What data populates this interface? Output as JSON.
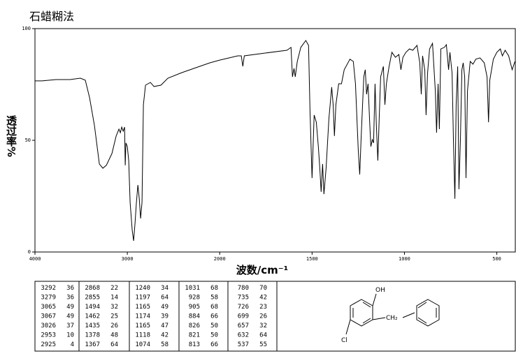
{
  "chart_data": {
    "type": "line",
    "title": "石蜡糊法",
    "xlabel": "波数/cm⁻¹",
    "ylabel": "透过率%",
    "xlim": [
      4000,
      400
    ],
    "x_scale_break": 2000,
    "xticks": [
      4000,
      3000,
      2000,
      1500,
      1000,
      500
    ],
    "ylim": [
      0,
      100
    ],
    "yticks": [
      0,
      50,
      100
    ],
    "color": "#000000",
    "x": [
      4000,
      3924,
      3773,
      3621,
      3508,
      3455,
      3409,
      3356,
      3303,
      3265,
      3227,
      3167,
      3121,
      3091,
      3076,
      3061,
      3045,
      3030,
      3023,
      3015,
      3000,
      2985,
      2970,
      2947,
      2932,
      2917,
      2902,
      2886,
      2871,
      2856,
      2841,
      2826,
      2803,
      2750,
      2712,
      2636,
      2561,
      2409,
      2258,
      2106,
      2000,
      1902,
      1883,
      1875,
      1867,
      1750,
      1636,
      1614,
      1606,
      1598,
      1591,
      1580,
      1561,
      1534,
      1519,
      1511,
      1500,
      1489,
      1477,
      1466,
      1458,
      1451,
      1443,
      1436,
      1424,
      1409,
      1394,
      1386,
      1379,
      1371,
      1356,
      1341,
      1326,
      1295,
      1277,
      1265,
      1250,
      1242,
      1235,
      1220,
      1212,
      1205,
      1197,
      1189,
      1182,
      1174,
      1167,
      1159,
      1152,
      1144,
      1136,
      1129,
      1114,
      1106,
      1098,
      1083,
      1068,
      1049,
      1030,
      1019,
      1008,
      992,
      973,
      955,
      932,
      917,
      909,
      902,
      890,
      883,
      875,
      864,
      848,
      833,
      826,
      818,
      811,
      803,
      784,
      773,
      761,
      754,
      742,
      735,
      727,
      720,
      712,
      705,
      697,
      689,
      682,
      674,
      667,
      659,
      644,
      629,
      614,
      591,
      568,
      553,
      545,
      538,
      519,
      500,
      481,
      470,
      455,
      436,
      417,
      402
    ],
    "values": [
      76.6,
      76.6,
      77.2,
      77.2,
      77.8,
      76.9,
      69.1,
      56.6,
      39.4,
      37.5,
      38.8,
      44.1,
      51.9,
      55,
      53.4,
      55.9,
      54.1,
      55.9,
      38.8,
      48.8,
      47.2,
      40.9,
      22.2,
      9.7,
      5,
      12.8,
      22.2,
      30,
      23.8,
      15,
      22.2,
      65.9,
      74.7,
      75.9,
      74.1,
      74.7,
      77.8,
      80.3,
      82.5,
      84.7,
      85.9,
      87.8,
      87.8,
      83.1,
      87.8,
      89.1,
      90.3,
      91.6,
      78.4,
      82.2,
      78.4,
      85.3,
      91.6,
      94.7,
      92.5,
      62.8,
      33.1,
      61.3,
      58.1,
      47.2,
      37.5,
      26.9,
      39.4,
      25.9,
      37.5,
      59.7,
      73.8,
      65.9,
      51.9,
      65.9,
      75.3,
      75.3,
      81.6,
      86.3,
      85.3,
      75.3,
      45.6,
      34.7,
      50.3,
      78.4,
      81.6,
      70.6,
      75.3,
      59.7,
      47.2,
      50.3,
      48.8,
      75.3,
      56.6,
      40.9,
      61.3,
      78.4,
      83.1,
      65.9,
      75.3,
      83.1,
      89.4,
      87.2,
      88.4,
      81.6,
      87.2,
      89.4,
      90.9,
      90.3,
      92.5,
      84.7,
      70.6,
      87.8,
      81.6,
      61.3,
      80,
      90.9,
      93.4,
      72.2,
      53.4,
      75.3,
      55,
      90.9,
      91.6,
      92.8,
      81.6,
      89.4,
      80,
      50.3,
      23.8,
      65.9,
      83.1,
      28.1,
      50.3,
      81.6,
      84.7,
      78.4,
      33.1,
      72.2,
      85.3,
      84.1,
      86.3,
      86.9,
      84.7,
      78.4,
      58.1,
      76.9,
      86.3,
      89.4,
      90.9,
      87.8,
      90.3,
      87.8,
      81.6,
      85.3
    ]
  },
  "peak_table": [
    [
      [
        3292,
        36
      ],
      [
        3279,
        36
      ],
      [
        3065,
        49
      ],
      [
        3067,
        49
      ],
      [
        3026,
        37
      ],
      [
        2953,
        10
      ],
      [
        2925,
        4
      ]
    ],
    [
      [
        2868,
        22
      ],
      [
        2855,
        14
      ],
      [
        1494,
        32
      ],
      [
        1462,
        25
      ],
      [
        1435,
        26
      ],
      [
        1378,
        48
      ],
      [
        1367,
        64
      ]
    ],
    [
      [
        1240,
        34
      ],
      [
        1197,
        64
      ],
      [
        1165,
        49
      ],
      [
        1174,
        39
      ],
      [
        1165,
        47
      ],
      [
        1118,
        42
      ],
      [
        1074,
        58
      ]
    ],
    [
      [
        1031,
        68
      ],
      [
        928,
        58
      ],
      [
        905,
        68
      ],
      [
        884,
        66
      ],
      [
        826,
        50
      ],
      [
        821,
        50
      ],
      [
        813,
        66
      ]
    ],
    [
      [
        780,
        70
      ],
      [
        735,
        42
      ],
      [
        726,
        23
      ],
      [
        699,
        26
      ],
      [
        657,
        32
      ],
      [
        632,
        64
      ],
      [
        537,
        55
      ]
    ]
  ],
  "structure": {
    "labels": [
      "OH",
      "CH₂",
      "Cl"
    ]
  }
}
